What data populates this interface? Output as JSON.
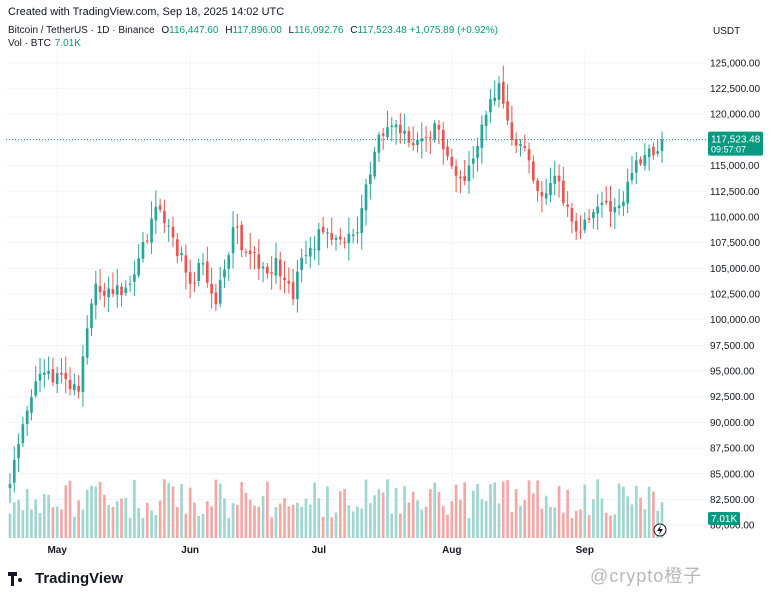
{
  "header": {
    "created_text": "Created with TradingView.com, Sep 18, 2025 14:02 UTC",
    "symbol": "Bitcoin / TetherUS · 1D · Binance",
    "open_label": "O",
    "open": "116,447.60",
    "high_label": "H",
    "high": "117,896.00",
    "low_label": "L",
    "low": "116,092.76",
    "close_label": "C",
    "close": "117,523.48",
    "change": "+1,075.89 (+0.92%)",
    "vol_label": "Vol · BTC",
    "vol_value": "7.01K",
    "currency": "USDT"
  },
  "price_badge": {
    "price": "117,523.48",
    "countdown": "09:57:07"
  },
  "volume_badge": "7.01K",
  "footer": {
    "brand": "TradingView",
    "watermark": "@crypto橙子"
  },
  "colors": {
    "up": "#26a69a",
    "down": "#ef5350",
    "vol_up": "#9fd6cf",
    "vol_down": "#f4a8a6",
    "badge": "#089981",
    "grid": "#f0f3fa",
    "text": "#131722"
  },
  "chart_data": {
    "type": "candlestick",
    "title": "Bitcoin / TetherUS · 1D · Binance",
    "ylabel": "USDT",
    "ylim": [
      78750,
      126250
    ],
    "y_ticks": [
      "125,000.00",
      "122,500.00",
      "120,000.00",
      "117,500.00",
      "115,000.00",
      "112,500.00",
      "110,000.00",
      "107,500.00",
      "105,000.00",
      "102,500.00",
      "100,000.00",
      "97,500.00",
      "95,000.00",
      "92,500.00",
      "90,000.00",
      "87,500.00",
      "85,000.00",
      "82,500.00",
      "80,000.00"
    ],
    "y_tick_values": [
      125000,
      122500,
      120000,
      117500,
      115000,
      112500,
      110000,
      107500,
      105000,
      102500,
      100000,
      97500,
      95000,
      92500,
      90000,
      87500,
      85000,
      82500,
      80000
    ],
    "x_labels": [
      {
        "label": "May",
        "index": 11
      },
      {
        "label": "Jun",
        "index": 42
      },
      {
        "label": "Jul",
        "index": 72
      },
      {
        "label": "Aug",
        "index": 103
      },
      {
        "label": "Sep",
        "index": 134
      }
    ],
    "current_price": 117523.48,
    "key_closes": [
      [
        0,
        84000
      ],
      [
        6,
        94000
      ],
      [
        9,
        95000
      ],
      [
        16,
        93000
      ],
      [
        20,
        103500
      ],
      [
        24,
        102500
      ],
      [
        28,
        103500
      ],
      [
        34,
        111000
      ],
      [
        38,
        108000
      ],
      [
        42,
        103500
      ],
      [
        45,
        105500
      ],
      [
        48,
        101500
      ],
      [
        52,
        109000
      ],
      [
        55,
        106500
      ],
      [
        60,
        104500
      ],
      [
        62,
        106000
      ],
      [
        66,
        102000
      ],
      [
        68,
        106000
      ],
      [
        73,
        108500
      ],
      [
        78,
        107500
      ],
      [
        81,
        108500
      ],
      [
        86,
        118000
      ],
      [
        90,
        119000
      ],
      [
        95,
        117500
      ],
      [
        100,
        118500
      ],
      [
        104,
        114000
      ],
      [
        106,
        113500
      ],
      [
        110,
        119000
      ],
      [
        114,
        123000
      ],
      [
        117,
        117500
      ],
      [
        121,
        115500
      ],
      [
        124,
        112000
      ],
      [
        127,
        114000
      ],
      [
        130,
        111000
      ],
      [
        133,
        108500
      ],
      [
        137,
        111000
      ],
      [
        140,
        110500
      ],
      [
        143,
        111500
      ],
      [
        146,
        115500
      ],
      [
        150,
        116000
      ],
      [
        151,
        116400
      ],
      [
        152,
        117523.48
      ]
    ],
    "volume_range": [
      0,
      90000
    ]
  }
}
